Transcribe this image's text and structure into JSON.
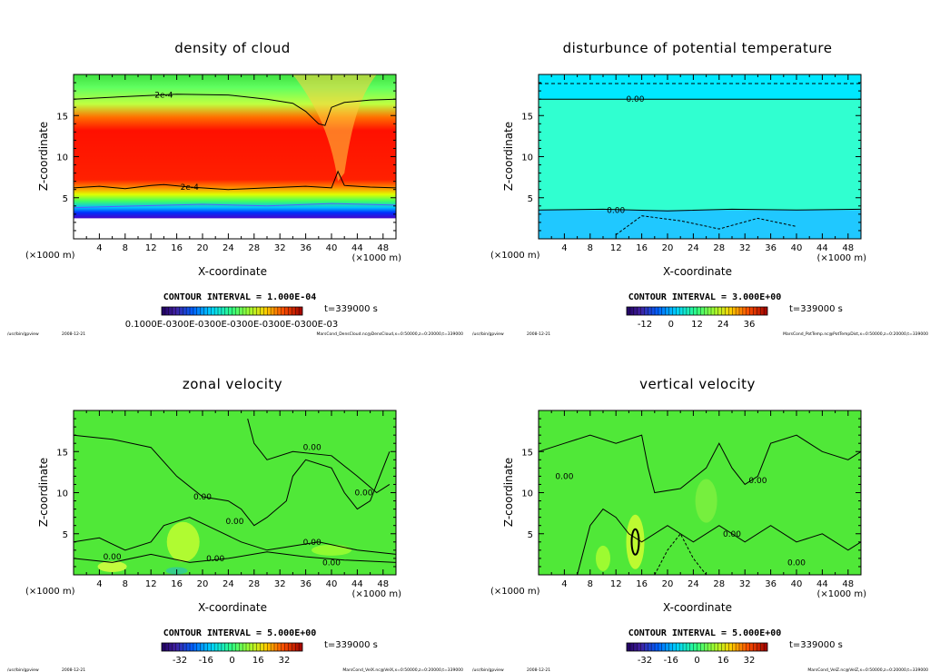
{
  "footer_left": "/usr/bin/gpview",
  "footer_date": "2008-12-21",
  "chart_data": [
    {
      "type": "heatmap",
      "title": "density of cloud",
      "xlabel": "X-coordinate",
      "ylabel": "Z-coordinate",
      "x_unit": "(×1000 m)",
      "y_unit": "(×1000 m)",
      "xlim": [
        0,
        50
      ],
      "ylim": [
        0,
        20
      ],
      "xticks": [
        4,
        8,
        12,
        16,
        20,
        24,
        28,
        32,
        36,
        40,
        44,
        48
      ],
      "yticks": [
        5,
        10,
        15
      ],
      "contour_labels": [
        "2e-4",
        "2e-4"
      ],
      "contour_interval": "CONTOUR INTERVAL = 1.000E-04",
      "time": "t=339000 s",
      "colorbar_labels": [
        "0.1000E-0300E-0300E-0300E-0300E-0300E-03"
      ],
      "footer_right": "MarsCond_DensCloud.nc@DensCloud,x=0:50000,z=0:20000,t=339000",
      "colors": [
        "#8000c8",
        "#0040ff",
        "#00ffff",
        "#40ff40",
        "#ffff00",
        "#ff8000",
        "#ff0000"
      ]
    },
    {
      "type": "heatmap",
      "title": "disturbunce of potential temperature",
      "xlabel": "X-coordinate",
      "ylabel": "Z-coordinate",
      "x_unit": "(×1000 m)",
      "y_unit": "(×1000 m)",
      "xlim": [
        0,
        50
      ],
      "ylim": [
        0,
        20
      ],
      "xticks": [
        4,
        8,
        12,
        16,
        20,
        24,
        28,
        32,
        36,
        40,
        44,
        48
      ],
      "yticks": [
        5,
        10,
        15
      ],
      "contour_labels": [
        "0.00",
        "0.00"
      ],
      "contour_interval": "CONTOUR INTERVAL = 3.000E+00",
      "time": "t=339000 s",
      "colorbar_labels": [
        "-12",
        "0",
        "12",
        "24",
        "36"
      ],
      "footer_right": "MarsCond_PotTemp.nc@PotTempDist,x=0:50000,z=0:20000,t=339000",
      "colors": [
        "#00e8ff",
        "#30ffd0"
      ]
    },
    {
      "type": "heatmap",
      "title": "zonal velocity",
      "xlabel": "X-coordinate",
      "ylabel": "Z-coordinate",
      "x_unit": "(×1000 m)",
      "y_unit": "(×1000 m)",
      "xlim": [
        0,
        50
      ],
      "ylim": [
        0,
        20
      ],
      "xticks": [
        4,
        8,
        12,
        16,
        20,
        24,
        28,
        32,
        36,
        40,
        44,
        48
      ],
      "yticks": [
        5,
        10,
        15
      ],
      "contour_labels": [
        "0.00",
        "0.00",
        "0.00",
        "0.00",
        "0.00",
        "0.00",
        "0.00",
        "0.00"
      ],
      "contour_interval": "CONTOUR INTERVAL = 5.000E+00",
      "time": "t=339000 s",
      "colorbar_labels": [
        "-32",
        "-16",
        "0",
        "16",
        "32"
      ],
      "footer_right": "MarsCond_VelX.nc@VelX,x=0:50000,z=0:20000,t=339000",
      "colors": [
        "#40e030",
        "#c8ff30"
      ]
    },
    {
      "type": "heatmap",
      "title": "vertical velocity",
      "xlabel": "X-coordinate",
      "ylabel": "Z-coordinate",
      "x_unit": "(×1000 m)",
      "y_unit": "(×1000 m)",
      "xlim": [
        0,
        50
      ],
      "ylim": [
        0,
        20
      ],
      "xticks": [
        4,
        8,
        12,
        16,
        20,
        24,
        28,
        32,
        36,
        40,
        44,
        48
      ],
      "yticks": [
        5,
        10,
        15
      ],
      "contour_labels": [
        "0.00",
        "0.00",
        "0.00",
        "0.00"
      ],
      "contour_interval": "CONTOUR INTERVAL = 5.000E+00",
      "time": "t=339000 s",
      "colorbar_labels": [
        "-32",
        "-16",
        "0",
        "16",
        "32"
      ],
      "footer_right": "MarsCond_VelZ.nc@VelZ,x=0:50000,z=0:20000,t=339000",
      "colors": [
        "#40e030",
        "#c8ff30"
      ]
    }
  ]
}
